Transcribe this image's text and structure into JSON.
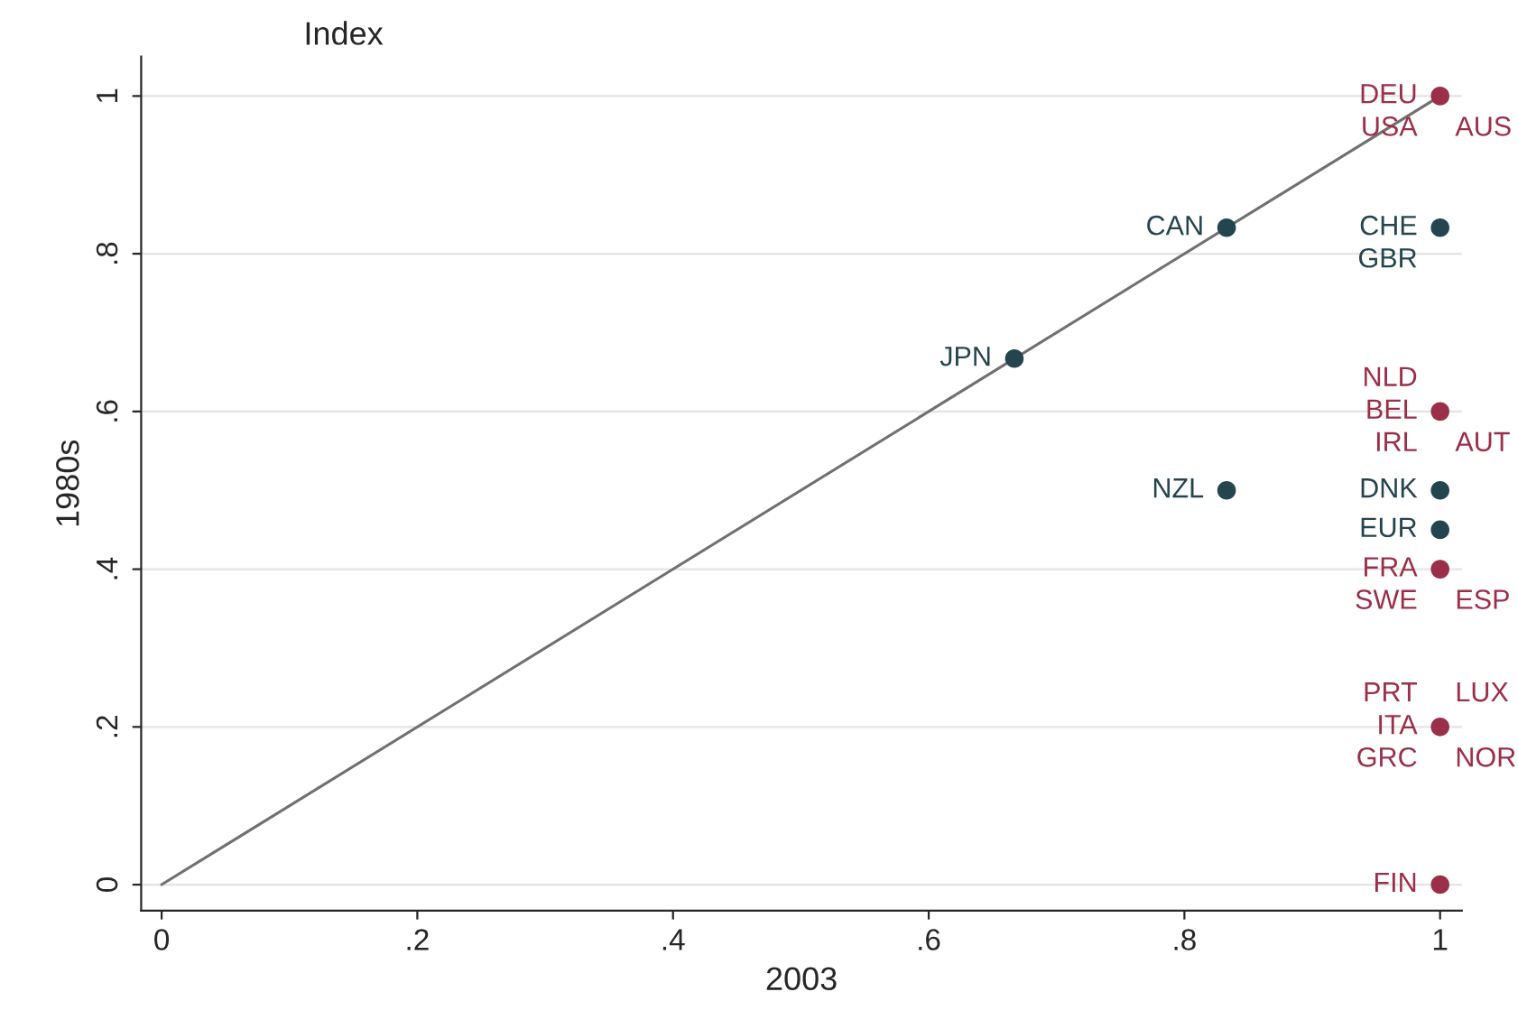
{
  "chart_data": {
    "type": "scatter",
    "title": "Index",
    "xlabel": "2003",
    "ylabel": "1980s",
    "xlim": [
      -0.016,
      1.017
    ],
    "ylim": [
      -0.033,
      1.05
    ],
    "xticks": [
      0,
      {
        "value": 0.2,
        "label": ".2"
      },
      {
        "value": 0.4,
        "label": ".4"
      },
      {
        "value": 0.6,
        "label": ".6"
      },
      {
        "value": 0.8,
        "label": ".8"
      },
      1
    ],
    "yticks": [
      0,
      {
        "value": 0.2,
        "label": ".2"
      },
      {
        "value": 0.4,
        "label": ".4"
      },
      {
        "value": 0.6,
        "label": ".6"
      },
      {
        "value": 0.8,
        "label": ".8"
      },
      1
    ],
    "grid": "y",
    "legend": false,
    "series": [
      {
        "type": "line",
        "color": "#707070",
        "x": [
          0,
          1
        ],
        "values": [
          0,
          1
        ]
      },
      {
        "color": "#24444f",
        "marker": "circle",
        "x": [
          0.833,
          1,
          0.667,
          0.833,
          1,
          1
        ],
        "values": [
          0.833,
          0.833,
          0.667,
          0.5,
          0.5,
          0.45
        ]
      },
      {
        "color": "#9b2f4a",
        "marker": "circle",
        "x": [
          1,
          1,
          1,
          1,
          1
        ],
        "values": [
          1,
          0.6,
          0.4,
          0.2,
          0
        ]
      }
    ],
    "annotations": [
      {
        "text": "DEU",
        "x": 1,
        "y": 1
      },
      {
        "text": "USA",
        "x": 1,
        "y": 1
      },
      {
        "text": "AUS",
        "x": 1,
        "y": 1
      },
      {
        "text": "CAN",
        "x": 0.833,
        "y": 0.833
      },
      {
        "text": "CHE",
        "x": 1,
        "y": 0.833
      },
      {
        "text": "GBR",
        "x": 1,
        "y": 0.833
      },
      {
        "text": "JPN",
        "x": 0.667,
        "y": 0.667
      },
      {
        "text": "BEL",
        "x": 1,
        "y": 0.6
      },
      {
        "text": "IRL",
        "x": 1,
        "y": 0.6
      },
      {
        "text": "AUT",
        "x": 1,
        "y": 0.6
      },
      {
        "text": "NLD",
        "x": 1,
        "y": 0.6
      },
      {
        "text": "NZL",
        "x": 0.833,
        "y": 0.5
      },
      {
        "text": "DNK",
        "x": 1,
        "y": 0.5
      },
      {
        "text": "EUR",
        "x": 1,
        "y": 0.45
      },
      {
        "text": "FRA",
        "x": 1,
        "y": 0.4
      },
      {
        "text": "SWE",
        "x": 1,
        "y": 0.4
      },
      {
        "text": "ESP",
        "x": 1,
        "y": 0.4
      },
      {
        "text": "ITA",
        "x": 1,
        "y": 0.2
      },
      {
        "text": "GRC",
        "x": 1,
        "y": 0.2
      },
      {
        "text": "NOR",
        "x": 1,
        "y": 0.2
      },
      {
        "text": "PRT",
        "x": 1,
        "y": 0.2
      },
      {
        "text": "LUX",
        "x": 1,
        "y": 0.2
      },
      {
        "text": "FIN",
        "x": 1,
        "y": 0
      }
    ]
  }
}
